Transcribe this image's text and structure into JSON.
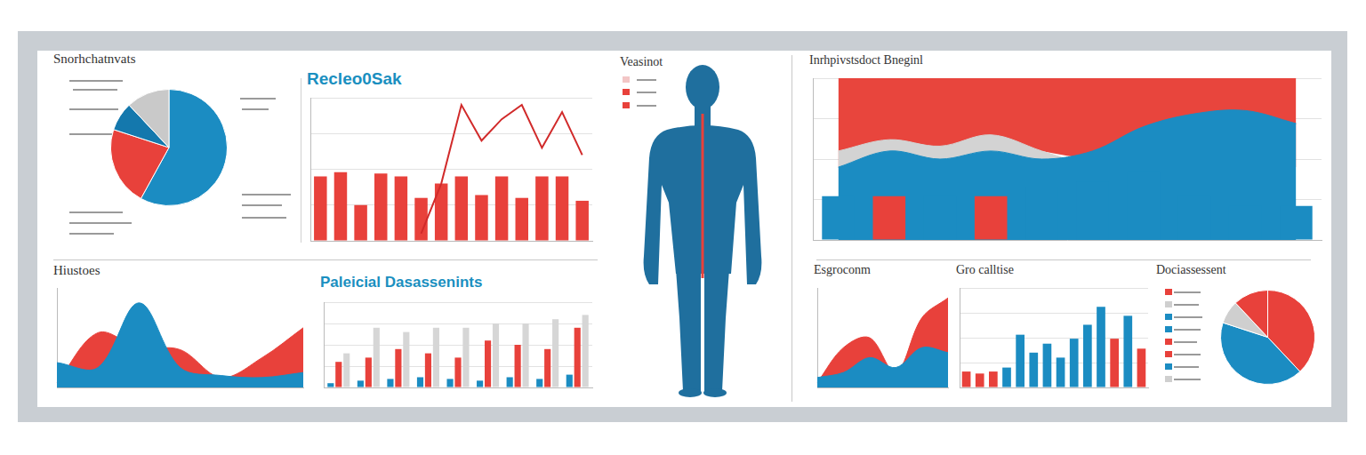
{
  "chart_data": [
    {
      "type": "pie",
      "title": "Snorhchatnvats",
      "categories": [
        null,
        null,
        null,
        null
      ],
      "values": [
        58,
        22,
        8,
        12
      ],
      "colors": [
        "#1b8cc2",
        "#e8413b",
        "#1478ad",
        "#c9c9c9"
      ]
    },
    {
      "type": "bar",
      "title": "Recleo0Sak",
      "categories": [
        null,
        null,
        null,
        null,
        null,
        null,
        null,
        null,
        null,
        null,
        null,
        null,
        null,
        null
      ],
      "series": [
        {
          "type": "bar",
          "color": "#e8413b",
          "values": [
            45,
            48,
            25,
            47,
            45,
            30,
            40,
            45,
            32,
            45,
            30,
            45,
            45,
            28
          ]
        },
        {
          "type": "line",
          "color": "#d12a2a",
          "values": [
            null,
            null,
            null,
            null,
            null,
            5,
            40,
            95,
            70,
            85,
            95,
            65,
            90,
            60
          ]
        }
      ],
      "ylim": [
        0,
        100
      ],
      "yticks": [
        0,
        25,
        50,
        75,
        100
      ],
      "grid": true,
      "tick_labels": false
    },
    {
      "type": "area",
      "title": "Hiustoes",
      "categories": [
        null,
        null,
        null,
        null,
        null,
        null,
        null
      ],
      "series": [
        {
          "type": "area",
          "color": "#e8413b",
          "values": [
            5,
            55,
            40,
            38,
            10,
            30,
            60
          ]
        },
        {
          "type": "area",
          "color": "#1b8cc2",
          "values": [
            25,
            20,
            85,
            20,
            12,
            10,
            15
          ]
        }
      ],
      "ylim": [
        0,
        100
      ],
      "grid": false,
      "tick_labels": false
    },
    {
      "type": "bar",
      "title": "Paleicial Dasassenints",
      "categories": [
        null,
        null,
        null,
        null,
        null,
        null,
        null,
        null,
        null
      ],
      "series": [
        {
          "type": "bar",
          "color": "#d6d6d6",
          "values": [
            40,
            70,
            65,
            70,
            70,
            75,
            75,
            80,
            85
          ]
        },
        {
          "type": "bar",
          "color": "#e8413b",
          "values": [
            30,
            35,
            45,
            40,
            35,
            55,
            50,
            45,
            70
          ]
        },
        {
          "type": "bar",
          "color": "#1b8cc2",
          "values": [
            5,
            8,
            10,
            12,
            10,
            8,
            12,
            10,
            15
          ]
        }
      ],
      "ylim": [
        0,
        100
      ],
      "yticks": [
        0,
        25,
        50,
        75,
        100
      ],
      "grid": true,
      "tick_labels": false
    },
    {
      "type": "bar",
      "title": "Inrhpivstsdoct Bneginl",
      "categories": [
        null,
        null,
        null,
        null,
        null,
        null,
        null,
        null,
        null,
        null
      ],
      "series": [
        {
          "type": "band",
          "color": "#e8453d",
          "values": [
            45,
            60,
            55,
            62,
            55,
            50,
            48,
            40,
            35,
            45
          ]
        },
        {
          "type": "area",
          "color": "#d3d3d3",
          "values": [
            55,
            62,
            58,
            65,
            55,
            45,
            35,
            30,
            28,
            25
          ]
        },
        {
          "type": "area",
          "color": "#1b8cc2",
          "values": [
            45,
            55,
            50,
            55,
            50,
            55,
            70,
            78,
            80,
            72
          ]
        },
        {
          "type": "bar",
          "colors": [
            "#1b8cc2",
            "#e8413b",
            "#1b8cc2",
            "#e8413b",
            "#1b8cc2",
            "#1b8cc2",
            "#1b8cc2",
            "#1b8cc2",
            "#1b8cc2",
            "#1b8cc2"
          ],
          "values": [
            27,
            27,
            27,
            27,
            33,
            36,
            42,
            27,
            21,
            21
          ]
        }
      ],
      "ylim": [
        0,
        100
      ],
      "yticks": [
        0,
        25,
        50,
        75,
        100
      ],
      "grid": true,
      "tick_labels": false
    },
    {
      "type": "area",
      "title": "Esgroconm",
      "categories": [
        null,
        null,
        null,
        null,
        null,
        null
      ],
      "series": [
        {
          "type": "area",
          "color": "#e8413b",
          "values": [
            5,
            40,
            50,
            15,
            70,
            90
          ]
        },
        {
          "type": "area",
          "color": "#1b8cc2",
          "values": [
            10,
            15,
            30,
            20,
            40,
            35
          ]
        }
      ],
      "ylim": [
        0,
        100
      ],
      "grid": false,
      "tick_labels": false
    },
    {
      "type": "bar",
      "title": "Gro calltise",
      "categories": [
        null,
        null,
        null,
        null,
        null,
        null,
        null,
        null,
        null,
        null,
        null,
        null,
        null,
        null
      ],
      "values": [
        16,
        14,
        16,
        20,
        53,
        35,
        44,
        30,
        49,
        63,
        81,
        49,
        72,
        39
      ],
      "colors": [
        "#e8413b",
        "#e8413b",
        "#e8413b",
        "#1b8cc2",
        "#1b8cc2",
        "#1b8cc2",
        "#1b8cc2",
        "#1b8cc2",
        "#1b8cc2",
        "#1b8cc2",
        "#1b8cc2",
        "#e8413b",
        "#1b8cc2",
        "#e8413b"
      ],
      "ylim": [
        0,
        100
      ],
      "yticks": [
        0,
        25,
        50,
        75,
        100
      ],
      "grid": true,
      "tick_labels": false
    },
    {
      "type": "pie",
      "title": "Dociassessent",
      "categories": [
        null,
        null,
        null,
        null
      ],
      "values": [
        38,
        42,
        8,
        12
      ],
      "colors": [
        "#e8413b",
        "#1b8cc2",
        "#cfcfcf",
        "#e8413b"
      ]
    }
  ],
  "diagram": {
    "title": "Veasinot"
  }
}
